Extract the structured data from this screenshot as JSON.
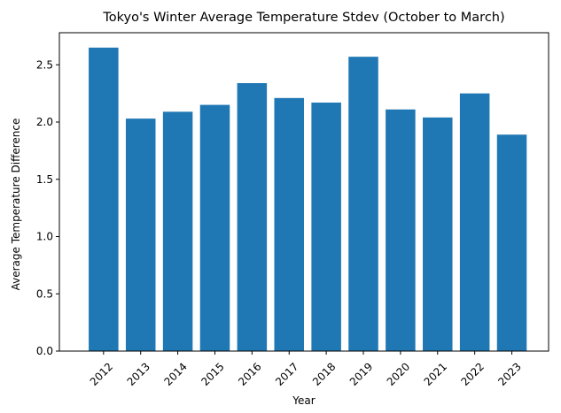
{
  "chart_data": {
    "type": "bar",
    "title": "Tokyo's Winter Average Temperature Stdev (October to March)",
    "xlabel": "Year",
    "ylabel": "Average Temperature Difference",
    "categories": [
      "2012",
      "2013",
      "2014",
      "2015",
      "2016",
      "2017",
      "2018",
      "2019",
      "2020",
      "2021",
      "2022",
      "2023"
    ],
    "values": [
      2.65,
      2.03,
      2.09,
      2.15,
      2.34,
      2.21,
      2.17,
      2.57,
      2.11,
      2.04,
      2.25,
      1.89
    ],
    "ylim": [
      0,
      2.78
    ],
    "yticks": [
      0.0,
      0.5,
      1.0,
      1.5,
      2.0,
      2.5
    ],
    "ytick_labels": [
      "0.0",
      "0.5",
      "1.0",
      "1.5",
      "2.0",
      "2.5"
    ],
    "bar_color": "#1f77b4",
    "grid": false,
    "legend": "none"
  }
}
